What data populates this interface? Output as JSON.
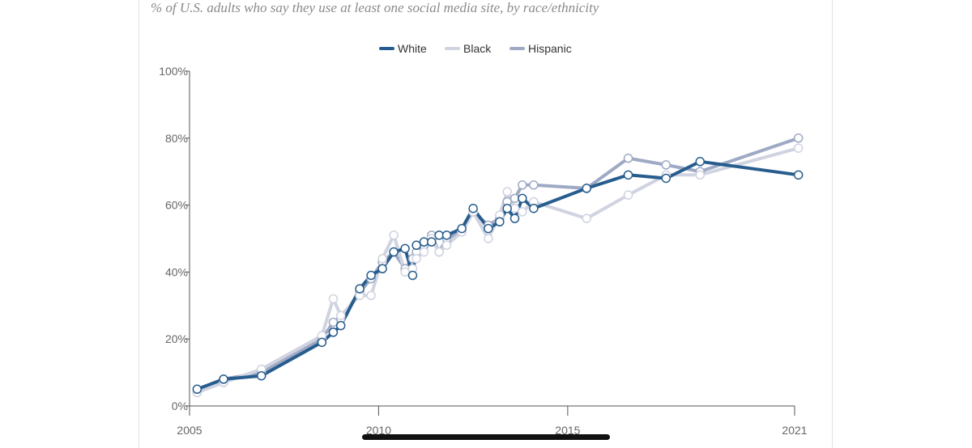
{
  "subtitle": "% of U.S. adults who say they use at least one social media site, by race/ethnicity",
  "chart_data": {
    "type": "line",
    "title": "",
    "subtitle": "% of U.S. adults who say they use at least one social media site, by race/ethnicity",
    "xlabel": "",
    "ylabel": "",
    "xlim": [
      2005,
      2021
    ],
    "ylim": [
      0,
      100
    ],
    "x_ticks": [
      2005,
      2010,
      2015,
      2021
    ],
    "x_tick_labels": [
      "2005",
      "2010",
      "2015",
      "2021"
    ],
    "y_ticks": [
      0,
      20,
      40,
      60,
      80,
      100
    ],
    "y_tick_labels": [
      "0%",
      "20%",
      "40%",
      "60%",
      "80%",
      "100%"
    ],
    "grid": false,
    "legend_position": "top-center",
    "series": [
      {
        "name": "Hispanic",
        "color": "#9ea9c4",
        "x": [
          2005.2,
          2005.9,
          2006.9,
          2008.5,
          2008.8,
          2009.0,
          2009.5,
          2009.8,
          2010.1,
          2010.4,
          2010.7,
          2010.9,
          2011.0,
          2011.2,
          2011.4,
          2011.6,
          2011.8,
          2012.2,
          2012.5,
          2012.9,
          2013.2,
          2013.4,
          2013.6,
          2013.8,
          2014.1,
          2015.5,
          2016.6,
          2017.6,
          2018.5,
          2021.1
        ],
        "y": [
          4,
          8,
          10,
          20,
          25,
          26,
          34,
          38,
          43,
          46,
          41,
          44,
          46,
          48,
          51,
          46,
          50,
          52,
          58,
          54,
          56,
          61,
          62,
          66,
          66,
          65,
          74,
          72,
          70,
          80
        ]
      },
      {
        "name": "Black",
        "color": "#d0d3e0",
        "x": [
          2005.2,
          2005.9,
          2006.9,
          2008.5,
          2008.8,
          2009.0,
          2009.5,
          2009.8,
          2010.1,
          2010.4,
          2010.7,
          2010.9,
          2011.0,
          2011.2,
          2011.4,
          2011.6,
          2011.8,
          2012.2,
          2012.5,
          2012.9,
          2013.2,
          2013.4,
          2013.6,
          2013.8,
          2014.1,
          2015.5,
          2016.6,
          2017.6,
          2018.5,
          2021.1
        ],
        "y": [
          4,
          7,
          11,
          21,
          32,
          27,
          33,
          33,
          44,
          51,
          40,
          41,
          44,
          46,
          50,
          46,
          48,
          52,
          58,
          50,
          57,
          64,
          59,
          58,
          61,
          56,
          63,
          69,
          69,
          77
        ]
      },
      {
        "name": "White",
        "color": "#275d8e",
        "x": [
          2005.2,
          2005.9,
          2006.9,
          2008.5,
          2008.8,
          2009.0,
          2009.5,
          2009.8,
          2010.1,
          2010.4,
          2010.7,
          2010.9,
          2011.0,
          2011.2,
          2011.4,
          2011.6,
          2011.8,
          2012.2,
          2012.5,
          2012.9,
          2013.2,
          2013.4,
          2013.6,
          2013.8,
          2014.1,
          2015.5,
          2016.6,
          2017.6,
          2018.5,
          2021.1
        ],
        "y": [
          5,
          8,
          9,
          19,
          22,
          24,
          35,
          39,
          41,
          46,
          47,
          39,
          48,
          49,
          49,
          51,
          51,
          53,
          59,
          53,
          55,
          59,
          56,
          62,
          59,
          65,
          69,
          68,
          73,
          69
        ]
      }
    ],
    "legend_order": [
      "White",
      "Black",
      "Hispanic"
    ]
  }
}
